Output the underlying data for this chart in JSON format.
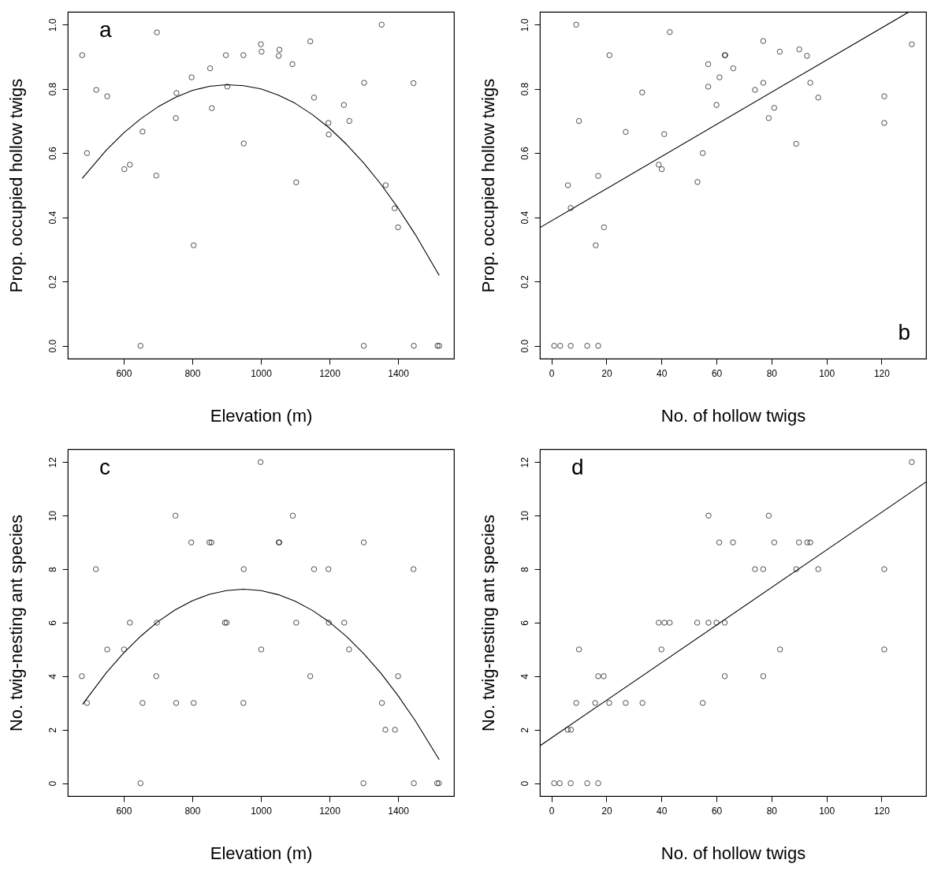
{
  "chart_data": [
    {
      "type": "scatter",
      "xlabel": "Elevation (m)",
      "ylabel": "Prop. occupied hollow twigs",
      "annotations": [
        "a"
      ],
      "xlim": [
        437,
        1563
      ],
      "ylim": [
        -0.04,
        1.04
      ],
      "xticks": [
        600,
        800,
        1000,
        1200,
        1400
      ],
      "yticks": [
        {
          "value": 0,
          "label": "0.0"
        },
        {
          "value": 0.2,
          "label": "0.2"
        },
        {
          "value": 0.4,
          "label": "0.4"
        },
        {
          "value": 0.6,
          "label": "0.6"
        },
        {
          "value": 0.8,
          "label": "0.8"
        },
        {
          "value": 1,
          "label": "1.0"
        }
      ],
      "series": [
        {
          "marker": "circle",
          "color": "#000000",
          "x": [
            479,
            493,
            520,
            552,
            602,
            618,
            649,
            655,
            695,
            697,
            752,
            754,
            798,
            804,
            852,
            857,
            898,
            902,
            949,
            950,
            1000,
            1002,
            1052,
            1054,
            1092,
            1103,
            1144,
            1155,
            1197,
            1198,
            1242,
            1258,
            1300,
            1301,
            1352,
            1364,
            1390,
            1400,
            1445,
            1446,
            1515,
            1520
          ],
          "values": [
            0.905,
            0.6,
            0.797,
            0.777,
            0.55,
            0.564,
            0,
            0.667,
            0.53,
            0.976,
            0.709,
            0.787,
            0.836,
            0.313,
            0.864,
            0.74,
            0.905,
            0.807,
            0.905,
            0.63,
            0.939,
            0.916,
            0.903,
            0.922,
            0.877,
            0.509,
            0.948,
            0.773,
            0.694,
            0.658,
            0.75,
            0.7,
            0,
            0.819,
            1,
            0.5,
            0.428,
            0.369,
            0.818,
            0,
            0,
            0
          ]
        },
        {
          "type": "line",
          "color": "#000000",
          "x": [
            479,
            550,
            600,
            650,
            700,
            750,
            800,
            850,
            900,
            950,
            1000,
            1050,
            1100,
            1150,
            1200,
            1250,
            1300,
            1350,
            1400,
            1450,
            1520
          ],
          "values": [
            0.521,
            0.61,
            0.663,
            0.707,
            0.744,
            0.773,
            0.795,
            0.808,
            0.813,
            0.81,
            0.8,
            0.781,
            0.755,
            0.72,
            0.678,
            0.627,
            0.569,
            0.503,
            0.429,
            0.347,
            0.219
          ]
        }
      ]
    },
    {
      "type": "scatter",
      "xlabel": "No. of hollow twigs",
      "ylabel": "Prop. occupied hollow twigs",
      "annotations": [
        "b"
      ],
      "xlim": [
        -4.2,
        136.2
      ],
      "ylim": [
        -0.04,
        1.04
      ],
      "xticks": [
        0,
        20,
        40,
        60,
        80,
        100,
        120
      ],
      "yticks": [
        {
          "value": 0,
          "label": "0.0"
        },
        {
          "value": 0.2,
          "label": "0.2"
        },
        {
          "value": 0.4,
          "label": "0.4"
        },
        {
          "value": 0.6,
          "label": "0.6"
        },
        {
          "value": 0.8,
          "label": "0.8"
        },
        {
          "value": 1,
          "label": "1.0"
        }
      ],
      "series": [
        {
          "marker": "circle",
          "color": "#000000",
          "x": [
            1,
            3.2,
            7,
            13,
            17,
            6,
            7,
            9,
            10,
            16.1,
            17,
            19.1,
            21.1,
            27,
            33,
            39,
            40.1,
            41,
            43,
            53.1,
            55,
            57,
            57,
            60,
            61.1,
            63,
            63.2,
            66.1,
            74,
            77,
            77,
            79,
            81,
            83,
            89,
            90.1,
            92.9,
            94.1,
            97,
            121,
            121,
            131
          ],
          "values": [
            0,
            0,
            0,
            0,
            0,
            0.5,
            0.429,
            1,
            0.7,
            0.313,
            0.529,
            0.369,
            0.905,
            0.666,
            0.789,
            0.564,
            0.55,
            0.659,
            0.977,
            0.51,
            0.6,
            0.807,
            0.877,
            0.75,
            0.836,
            0.905,
            0.905,
            0.864,
            0.797,
            0.949,
            0.819,
            0.709,
            0.741,
            0.916,
            0.629,
            0.923,
            0.903,
            0.819,
            0.773,
            0.777,
            0.694,
            0.939
          ]
        },
        {
          "type": "line",
          "color": "#000000",
          "x": [
            -4.2,
            129.8
          ],
          "values": [
            0.368,
            1.039
          ]
        }
      ]
    },
    {
      "type": "scatter",
      "xlabel": "Elevation (m)",
      "ylabel": "No. twig-nesting ant species",
      "annotations": [
        "c"
      ],
      "xlim": [
        437,
        1563
      ],
      "ylim": [
        -0.48,
        12.48
      ],
      "xticks": [
        600,
        800,
        1000,
        1200,
        1400
      ],
      "yticks": [
        0,
        2,
        4,
        6,
        8,
        10,
        12
      ],
      "series": [
        {
          "marker": "circle",
          "color": "#000000",
          "x": [
            478,
            493,
            519,
            552,
            601,
            618,
            649,
            655,
            695,
            697,
            751,
            753,
            797,
            804,
            850,
            856,
            895,
            900,
            950,
            949,
            999,
            1001,
            1052,
            1054,
            1093,
            1103,
            1144,
            1155,
            1197,
            1198,
            1243,
            1257,
            1299,
            1300,
            1353,
            1363,
            1391,
            1400,
            1445,
            1446,
            1514,
            1519
          ],
          "values": [
            4,
            3,
            8,
            5,
            5,
            6,
            0,
            3,
            4,
            6,
            10,
            3,
            9,
            3,
            9,
            9,
            6,
            6,
            8,
            3,
            12,
            5,
            9,
            9,
            10,
            6,
            4,
            8,
            8,
            6,
            6,
            5,
            0,
            9,
            3,
            2,
            2,
            4,
            8,
            0,
            0,
            0
          ]
        },
        {
          "type": "line",
          "color": "#000000",
          "x": [
            480,
            550,
            600,
            650,
            700,
            750,
            800,
            850,
            900,
            949,
            1000,
            1050,
            1100,
            1150,
            1200,
            1250,
            1300,
            1350,
            1400,
            1450,
            1520
          ],
          "values": [
            2.95,
            4.14,
            4.87,
            5.5,
            6.04,
            6.48,
            6.82,
            7.06,
            7.2,
            7.25,
            7.2,
            7.05,
            6.8,
            6.46,
            6.02,
            5.48,
            4.84,
            4.11,
            3.27,
            2.34,
            0.88
          ]
        }
      ]
    },
    {
      "type": "scatter",
      "xlabel": "No. of hollow twigs",
      "ylabel": "No. twig-nesting ant species",
      "annotations": [
        "d"
      ],
      "xlim": [
        -4.2,
        136.2
      ],
      "ylim": [
        -0.48,
        12.48
      ],
      "xticks": [
        0,
        20,
        40,
        60,
        80,
        100,
        120
      ],
      "yticks": [
        0,
        2,
        4,
        6,
        8,
        10,
        12
      ],
      "series": [
        {
          "marker": "circle",
          "color": "#000000",
          "x": [
            1,
            3,
            7,
            13,
            17,
            5.9,
            7.1,
            9,
            10,
            15.9,
            17,
            19,
            21,
            27,
            33.1,
            39,
            40,
            41.1,
            43,
            53,
            55,
            57.1,
            57.1,
            60,
            61,
            63,
            63,
            66,
            74,
            77,
            77,
            79,
            81,
            83.1,
            89,
            90,
            93,
            94.1,
            97,
            121,
            121,
            131
          ],
          "values": [
            0,
            0,
            0,
            0,
            0,
            2,
            2,
            3,
            5,
            3,
            4,
            4,
            3,
            3,
            3,
            6,
            5,
            6,
            6,
            6,
            3,
            10,
            6,
            6,
            9,
            6,
            4,
            9,
            8,
            8,
            4,
            10,
            9,
            5,
            8,
            9,
            9,
            9,
            8,
            8,
            5,
            12
          ]
        },
        {
          "type": "line",
          "color": "#000000",
          "x": [
            -4.2,
            136.2
          ],
          "values": [
            1.4,
            11.26
          ]
        }
      ]
    }
  ]
}
